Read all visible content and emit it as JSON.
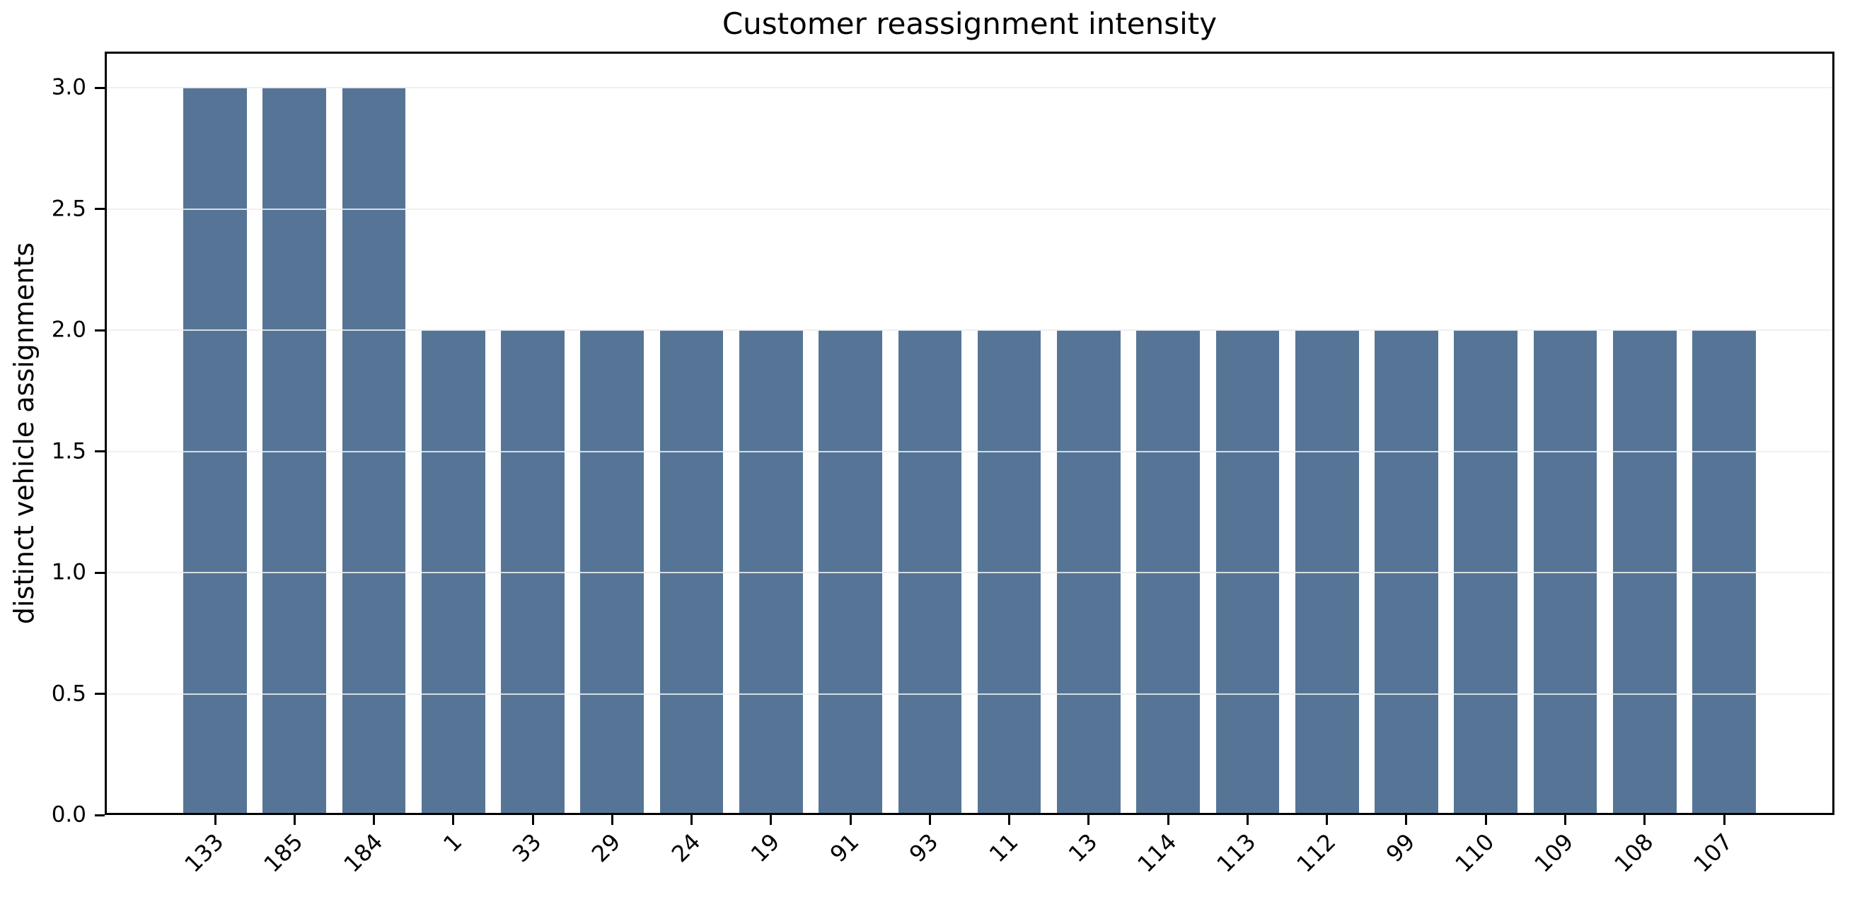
{
  "chart_data": {
    "type": "bar",
    "title": "Customer reassignment intensity",
    "xlabel": "",
    "ylabel": "distinct vehicle assignments",
    "categories": [
      "133",
      "185",
      "184",
      "1",
      "33",
      "29",
      "24",
      "19",
      "91",
      "93",
      "11",
      "13",
      "114",
      "113",
      "112",
      "99",
      "110",
      "109",
      "108",
      "107"
    ],
    "values": [
      3,
      3,
      3,
      2,
      2,
      2,
      2,
      2,
      2,
      2,
      2,
      2,
      2,
      2,
      2,
      2,
      2,
      2,
      2,
      2
    ],
    "ytick_labels": [
      "0.0",
      "0.5",
      "1.0",
      "1.5",
      "2.0",
      "2.5",
      "3.0"
    ],
    "ytick_values": [
      0,
      0.5,
      1,
      1.5,
      2,
      2.5,
      3
    ],
    "ylim": [
      0,
      3.15
    ],
    "xlim": [
      -1.39,
      20.39
    ],
    "bar_width": 0.8,
    "bar_color": "#567596",
    "grid": "horizontal",
    "grid_color": "#ededed",
    "axis_color": "#000000",
    "background_color": "#ffffff",
    "legend": null
  }
}
